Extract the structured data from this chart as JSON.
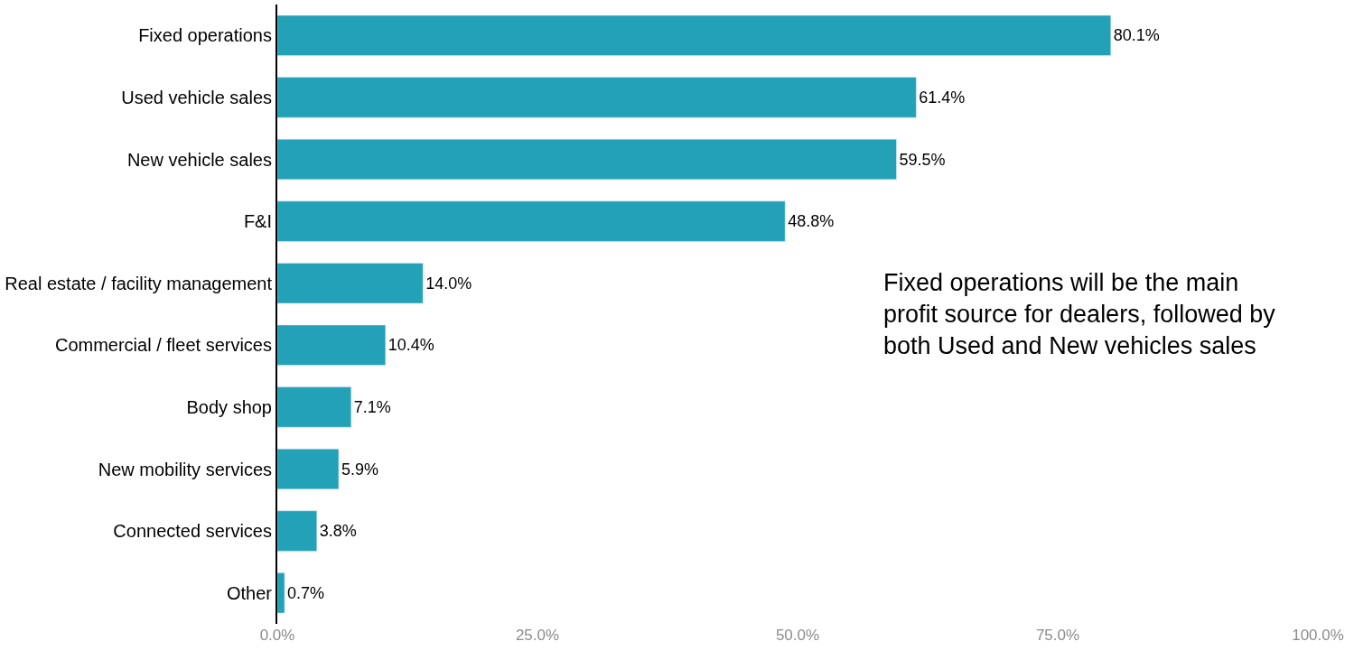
{
  "chart_data": {
    "type": "bar",
    "orientation": "horizontal",
    "categories": [
      "Fixed operations",
      "Used vehicle sales",
      "New vehicle sales",
      "F&I",
      "Real estate / facility management",
      "Commercial / fleet services",
      "Body shop",
      "New mobility services",
      "Connected services",
      "Other"
    ],
    "values": [
      80.1,
      61.4,
      59.5,
      48.8,
      14.0,
      10.4,
      7.1,
      5.9,
      3.8,
      0.7
    ],
    "value_labels": [
      "80.1%",
      "61.4%",
      "59.5%",
      "48.8%",
      "14.0%",
      "10.4%",
      "7.1%",
      "5.9%",
      "3.8%",
      "0.7%"
    ],
    "color": "#22a1b7",
    "xlim": [
      0,
      100
    ],
    "xticks": [
      {
        "value": 0,
        "label": "0.0%"
      },
      {
        "value": 25,
        "label": "25.0%"
      },
      {
        "value": 50,
        "label": "50.0%"
      },
      {
        "value": 75,
        "label": "75.0%"
      },
      {
        "value": 100,
        "label": "100.0%"
      }
    ],
    "legend": false,
    "annotations": [
      "Fixed operations will be the main\nprofit source for dealers, followed by\nboth Used and New vehicles sales"
    ]
  }
}
